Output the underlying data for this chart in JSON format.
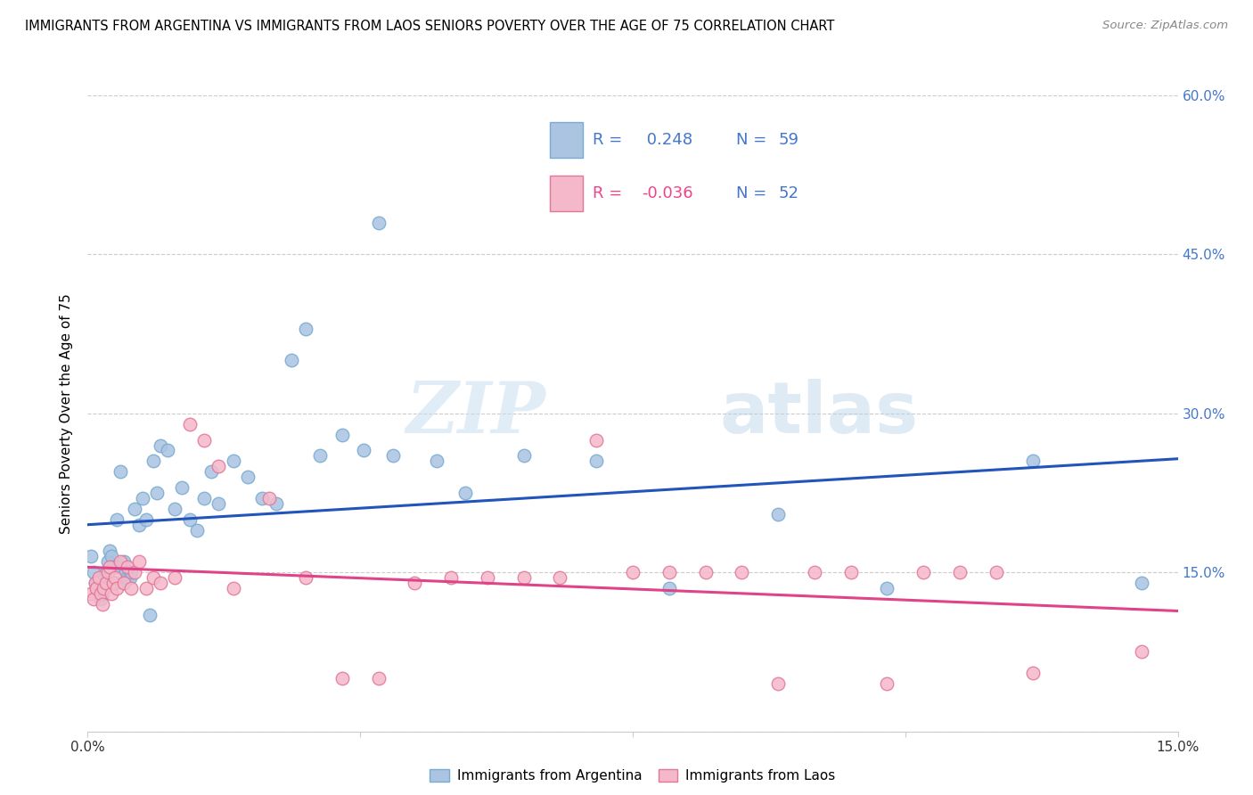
{
  "title": "IMMIGRANTS FROM ARGENTINA VS IMMIGRANTS FROM LAOS SENIORS POVERTY OVER THE AGE OF 75 CORRELATION CHART",
  "source": "Source: ZipAtlas.com",
  "ylabel": "Seniors Poverty Over the Age of 75",
  "xlim": [
    0.0,
    15.0
  ],
  "ylim": [
    0.0,
    60.0
  ],
  "yticks": [
    0.0,
    15.0,
    30.0,
    45.0,
    60.0
  ],
  "ytick_labels_right": [
    "",
    "15.0%",
    "30.0%",
    "45.0%",
    "60.0%"
  ],
  "xtick_labels": [
    "0.0%",
    "",
    "",
    "",
    "15.0%"
  ],
  "argentina_color": "#aac4e2",
  "laos_color": "#f5b8ca",
  "argentina_edge": "#7aaad0",
  "laos_edge": "#e07898",
  "trend_argentina_color": "#2255bb",
  "trend_laos_color": "#e04488",
  "R_argentina": 0.248,
  "N_argentina": 59,
  "R_laos": -0.036,
  "N_laos": 52,
  "watermark_zip": "ZIP",
  "watermark_atlas": "atlas",
  "legend_color": "#4477cc",
  "legend_r_laos_color": "#ee4488",
  "argentina_x": [
    0.05,
    0.08,
    0.1,
    0.12,
    0.15,
    0.18,
    0.2,
    0.22,
    0.25,
    0.28,
    0.3,
    0.32,
    0.35,
    0.38,
    0.4,
    0.42,
    0.45,
    0.48,
    0.5,
    0.52,
    0.55,
    0.58,
    0.6,
    0.65,
    0.7,
    0.75,
    0.8,
    0.85,
    0.9,
    0.95,
    1.0,
    1.1,
    1.2,
    1.3,
    1.4,
    1.5,
    1.6,
    1.7,
    1.8,
    2.0,
    2.2,
    2.4,
    2.6,
    2.8,
    3.0,
    3.2,
    3.5,
    3.8,
    4.0,
    4.2,
    4.8,
    5.2,
    6.0,
    7.0,
    8.0,
    9.5,
    11.0,
    13.0,
    14.5
  ],
  "argentina_y": [
    16.5,
    15.0,
    14.0,
    13.5,
    13.0,
    12.5,
    13.0,
    14.5,
    15.0,
    16.0,
    17.0,
    16.5,
    15.5,
    14.0,
    20.0,
    15.5,
    24.5,
    14.0,
    16.0,
    15.0,
    14.5,
    14.5,
    15.0,
    21.0,
    19.5,
    22.0,
    20.0,
    11.0,
    25.5,
    22.5,
    27.0,
    26.5,
    21.0,
    23.0,
    20.0,
    19.0,
    22.0,
    24.5,
    21.5,
    25.5,
    24.0,
    22.0,
    21.5,
    35.0,
    38.0,
    26.0,
    28.0,
    26.5,
    48.0,
    26.0,
    25.5,
    22.5,
    26.0,
    25.5,
    13.5,
    20.5,
    13.5,
    25.5,
    14.0
  ],
  "laos_x": [
    0.05,
    0.08,
    0.1,
    0.12,
    0.15,
    0.18,
    0.2,
    0.22,
    0.25,
    0.28,
    0.3,
    0.32,
    0.35,
    0.38,
    0.4,
    0.45,
    0.5,
    0.55,
    0.6,
    0.65,
    0.7,
    0.8,
    0.9,
    1.0,
    1.2,
    1.4,
    1.6,
    1.8,
    2.0,
    2.5,
    3.0,
    3.5,
    4.0,
    4.5,
    5.0,
    5.5,
    6.0,
    6.5,
    7.0,
    7.5,
    8.0,
    8.5,
    9.0,
    9.5,
    10.0,
    10.5,
    11.0,
    11.5,
    12.0,
    12.5,
    13.0,
    14.5
  ],
  "laos_y": [
    13.0,
    12.5,
    14.0,
    13.5,
    14.5,
    13.0,
    12.0,
    13.5,
    14.0,
    15.0,
    15.5,
    13.0,
    14.0,
    14.5,
    13.5,
    16.0,
    14.0,
    15.5,
    13.5,
    15.0,
    16.0,
    13.5,
    14.5,
    14.0,
    14.5,
    29.0,
    27.5,
    25.0,
    13.5,
    22.0,
    14.5,
    5.0,
    5.0,
    14.0,
    14.5,
    14.5,
    14.5,
    14.5,
    27.5,
    15.0,
    15.0,
    15.0,
    15.0,
    4.5,
    15.0,
    15.0,
    4.5,
    15.0,
    15.0,
    15.0,
    5.5,
    7.5
  ]
}
